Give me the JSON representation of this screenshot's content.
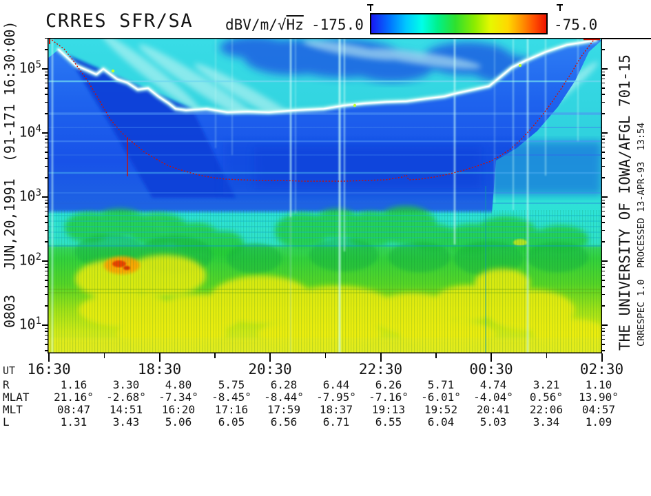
{
  "header": {
    "title": "CRRES SFR/SA",
    "units_prefix": "dBV/m/√",
    "units_overline": "Hz",
    "scale_min": "-175.0",
    "scale_max": "-75.0"
  },
  "left_margin_label": "0803   JUN,20,1991  (91-171 16:30:00)",
  "right_credit_primary": "THE UNIVERSITY OF IOWA/AFGL 701-15",
  "right_credit_secondary": "CRRESPEC 1.0  PROCESSED 13-APR-93  13:54",
  "colors": {
    "accent_curve": "#D01000",
    "band_bright": "#FFFFFF",
    "background_cyan": "#38DCE6",
    "background_blue": "#1A5BEC",
    "background_yellow": "#E8EE20"
  },
  "chart_data": {
    "type": "heatmap",
    "title": "CRRES SFR/SA",
    "subtitle": "Swept Frequency Receiver spectrogram, frequency vs universal time",
    "colorbar": {
      "units": "dBV/m/√Hz",
      "min": -175.0,
      "max": -75.0,
      "gradient": [
        "#1818F2",
        "#0078FF",
        "#00C8FF",
        "#00FFE8",
        "#00F08A",
        "#2EE02E",
        "#8CEC00",
        "#E6F800",
        "#FFD800",
        "#FF9400",
        "#FF5000",
        "#EE1400"
      ],
      "marker_positions_frac": [
        0.0,
        1.0
      ]
    },
    "x_axis": {
      "label": "UT",
      "ticks": [
        "16:30",
        "18:30",
        "20:30",
        "22:30",
        "00:30",
        "02:30"
      ],
      "minor_interval": "1 hour"
    },
    "y_axis": {
      "scale": "log",
      "unit": "Hz",
      "tick_exponents": [
        "5",
        "4",
        "3",
        "2",
        "1"
      ],
      "range_hz": [
        3.2,
        560000
      ]
    },
    "overlays": {
      "red_dashed_curve": "U-shaped dotted red line from top-left corner down to ~2-3 kHz near 21:30-23:30, rising back to top-right corner",
      "bright_band": "bright white/cyan emission band descending from ~300 kHz at 16:30 to ~30-40 kHz mid-pass, rising again to ~300 kHz by 02:30",
      "hotspot": "orange/red intensity peak near 17:50 UT at ~100-150 Hz"
    },
    "ephemeris": {
      "rows": [
        {
          "label": "R",
          "values": [
            "1.16",
            "3.30",
            "4.80",
            "5.75",
            "6.28",
            "6.44",
            "6.26",
            "5.71",
            "4.74",
            "3.21",
            "1.10"
          ]
        },
        {
          "label": "MLAT",
          "values": [
            "21.16°",
            "-2.68°",
            "-7.34°",
            "-8.45°",
            "-8.44°",
            "-7.95°",
            "-7.16°",
            "-6.01°",
            "-4.04°",
            "0.56°",
            "13.90°"
          ]
        },
        {
          "label": "MLT",
          "values": [
            "08:47",
            "14:51",
            "16:20",
            "17:16",
            "17:59",
            "18:37",
            "19:13",
            "19:52",
            "20:41",
            "22:06",
            "04:57"
          ]
        },
        {
          "label": "L",
          "values": [
            "1.31",
            "3.43",
            "5.06",
            "6.05",
            "6.56",
            "6.71",
            "6.55",
            "6.04",
            "5.03",
            "3.34",
            "1.09"
          ]
        }
      ]
    }
  }
}
